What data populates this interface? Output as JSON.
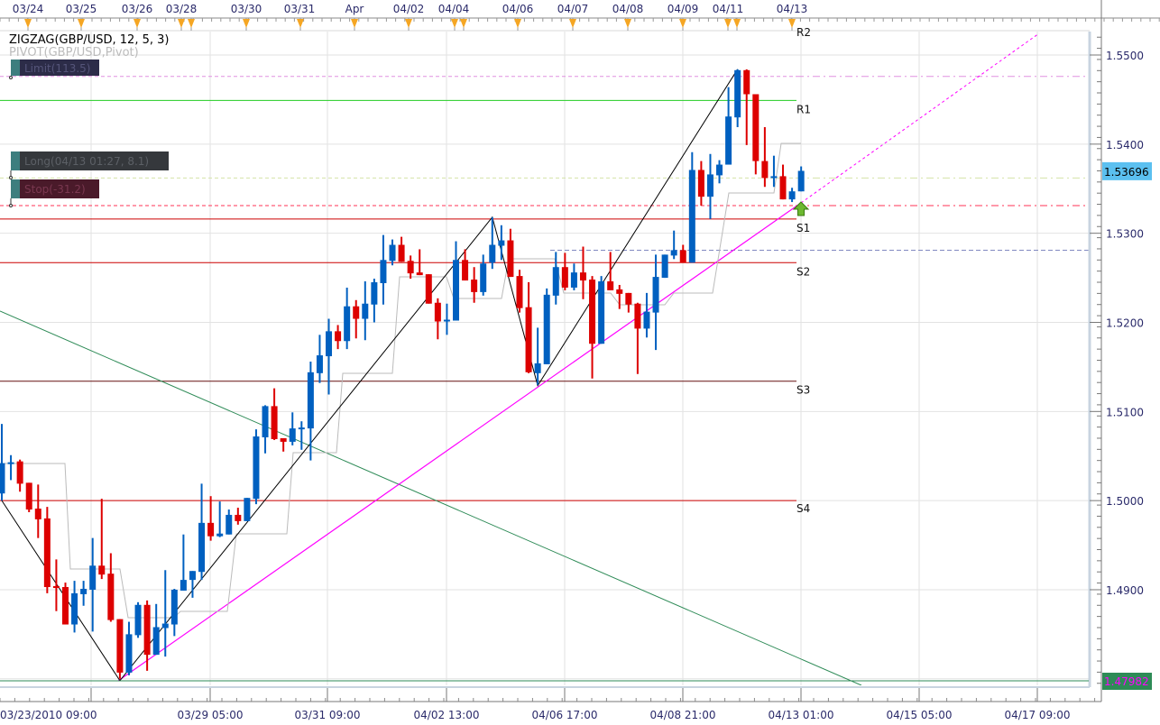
{
  "legend": {
    "indicator1": "ZIGZAG(GBP/USD, 12, 5, 3)",
    "indicator2": "PIVOT(GBP/USD,Pivot)"
  },
  "orders": {
    "limit": "Limit(113.5)",
    "long": "Long(04/13 01:27, 8.1)",
    "stop": "Stop(-31.2)"
  },
  "pivot_labels": {
    "r2": "R2",
    "r1": "R1",
    "s1": "S1",
    "s2": "S2",
    "s3": "S3",
    "s4": "S4"
  },
  "price_axis": {
    "ticks": [
      "1.5500",
      "1.5400",
      "1.5300",
      "1.5200",
      "1.5100",
      "1.5000",
      "1.4900"
    ],
    "current_price": "1.53696",
    "low_marker": "1.47982"
  },
  "top_axis": {
    "labels": [
      "03/24",
      "03/25",
      "03/26",
      "03/28",
      "03/30",
      "03/31",
      "Apr",
      "04/02",
      "04/04",
      "04/06",
      "04/07",
      "04/08",
      "04/09",
      "04/11",
      "04/13"
    ]
  },
  "bottom_axis": {
    "labels": [
      "03/23/2010 09:00",
      "03/29 05:00",
      "03/31 09:00",
      "04/02 13:00",
      "04/06 17:00",
      "04/08 21:00",
      "04/13 01:00",
      "04/15 05:00",
      "04/17 09:00"
    ]
  },
  "colors": {
    "bull": "#0060c0",
    "bear": "#dd0000",
    "current_price_bg": "#5bc0f0",
    "low_marker_bg": "#2e8b57",
    "low_marker_text": "#ff00ff",
    "trendline": "#ff00ff",
    "r1": "#22cc22",
    "support": "#cc0000"
  },
  "chart_data": {
    "type": "candlestick",
    "symbol": "GBP/USD",
    "ylim": [
      1.4795,
      1.5525
    ],
    "levels": {
      "R1": 1.5449,
      "S1": 1.5316,
      "S2": 1.5267,
      "S3": 1.5134,
      "S4": 1.5,
      "limit": 1.5476,
      "long_entry": 1.5362,
      "stop": 1.5331,
      "blue_dashed": 1.5281
    },
    "candles_ohlc": [
      [
        1.5008,
        1.5086,
        1.5,
        1.5042
      ],
      [
        1.5041,
        1.5051,
        1.5023,
        1.5043
      ],
      [
        1.5044,
        1.5046,
        1.501,
        1.5019
      ],
      [
        1.502,
        1.502,
        1.4987,
        1.499
      ],
      [
        1.4991,
        1.5018,
        1.4958,
        1.4979
      ],
      [
        1.498,
        1.4993,
        1.4896,
        1.4903
      ],
      [
        1.4904,
        1.4934,
        1.4876,
        1.4902
      ],
      [
        1.4903,
        1.4908,
        1.4861,
        1.4861
      ],
      [
        1.4861,
        1.491,
        1.4852,
        1.4896
      ],
      [
        1.4895,
        1.491,
        1.4882,
        1.4901
      ],
      [
        1.49,
        1.4958,
        1.4853,
        1.4927
      ],
      [
        1.4927,
        1.5002,
        1.4912,
        1.4917
      ],
      [
        1.4918,
        1.4941,
        1.4864,
        1.4866
      ],
      [
        1.4867,
        1.4867,
        1.48,
        1.4807
      ],
      [
        1.4807,
        1.4864,
        1.4804,
        1.485
      ],
      [
        1.4849,
        1.4886,
        1.4846,
        1.4883
      ],
      [
        1.4883,
        1.4888,
        1.4809,
        1.4827
      ],
      [
        1.4827,
        1.4884,
        1.4827,
        1.4858
      ],
      [
        1.4857,
        1.4922,
        1.4825,
        1.4862
      ],
      [
        1.4861,
        1.4901,
        1.4848,
        1.49
      ],
      [
        1.4899,
        1.4962,
        1.4899,
        1.4911
      ],
      [
        1.4911,
        1.4921,
        1.4891,
        1.4921
      ],
      [
        1.492,
        1.5019,
        1.4911,
        1.4975
      ],
      [
        1.4975,
        1.5005,
        1.4955,
        1.496
      ],
      [
        1.496,
        1.4999,
        1.4959,
        1.4963
      ],
      [
        1.4962,
        1.499,
        1.4962,
        1.4984
      ],
      [
        1.4984,
        1.4992,
        1.4973,
        1.4977
      ],
      [
        1.4977,
        1.5003,
        1.4977,
        1.5003
      ],
      [
        1.5002,
        1.508,
        1.4996,
        1.5072
      ],
      [
        1.5071,
        1.5107,
        1.5053,
        1.5106
      ],
      [
        1.5106,
        1.5126,
        1.5068,
        1.5069
      ],
      [
        1.507,
        1.507,
        1.5055,
        1.5066
      ],
      [
        1.5066,
        1.5099,
        1.5062,
        1.5081
      ],
      [
        1.508,
        1.5089,
        1.5057,
        1.5082
      ],
      [
        1.5081,
        1.5156,
        1.5045,
        1.5144
      ],
      [
        1.5143,
        1.5186,
        1.5132,
        1.5163
      ],
      [
        1.5162,
        1.5204,
        1.5119,
        1.519
      ],
      [
        1.519,
        1.5197,
        1.517,
        1.5179
      ],
      [
        1.5179,
        1.5239,
        1.517,
        1.5218
      ],
      [
        1.5218,
        1.5225,
        1.5182,
        1.5204
      ],
      [
        1.5204,
        1.5246,
        1.518,
        1.5221
      ],
      [
        1.522,
        1.5249,
        1.52,
        1.5245
      ],
      [
        1.5244,
        1.5298,
        1.522,
        1.527
      ],
      [
        1.5269,
        1.5293,
        1.5264,
        1.5287
      ],
      [
        1.5287,
        1.5296,
        1.5268,
        1.5268
      ],
      [
        1.5269,
        1.5275,
        1.5249,
        1.5255
      ],
      [
        1.5256,
        1.5282,
        1.5253,
        1.5253
      ],
      [
        1.5254,
        1.5254,
        1.5221,
        1.5221
      ],
      [
        1.5222,
        1.5227,
        1.5181,
        1.5201
      ],
      [
        1.5201,
        1.5221,
        1.5186,
        1.5203
      ],
      [
        1.5202,
        1.5291,
        1.5202,
        1.527
      ],
      [
        1.527,
        1.5282,
        1.5247,
        1.5247
      ],
      [
        1.5248,
        1.5262,
        1.5222,
        1.5234
      ],
      [
        1.5234,
        1.5276,
        1.523,
        1.5266
      ],
      [
        1.5267,
        1.5318,
        1.526,
        1.5287
      ],
      [
        1.5286,
        1.5309,
        1.527,
        1.5292
      ],
      [
        1.5292,
        1.5305,
        1.5251,
        1.5251
      ],
      [
        1.5252,
        1.5259,
        1.5211,
        1.5216
      ],
      [
        1.5217,
        1.5245,
        1.5143,
        1.5144
      ],
      [
        1.5143,
        1.5194,
        1.513,
        1.5154
      ],
      [
        1.5153,
        1.5238,
        1.5153,
        1.5231
      ],
      [
        1.523,
        1.5279,
        1.522,
        1.5262
      ],
      [
        1.5262,
        1.5278,
        1.5236,
        1.5239
      ],
      [
        1.5239,
        1.5266,
        1.5236,
        1.5256
      ],
      [
        1.5256,
        1.5285,
        1.5226,
        1.5247
      ],
      [
        1.5248,
        1.5252,
        1.5137,
        1.5176
      ],
      [
        1.5176,
        1.5252,
        1.5176,
        1.5246
      ],
      [
        1.5246,
        1.5279,
        1.5236,
        1.5236
      ],
      [
        1.5237,
        1.5242,
        1.5215,
        1.5232
      ],
      [
        1.5233,
        1.5233,
        1.5211,
        1.522
      ],
      [
        1.5221,
        1.5222,
        1.5142,
        1.5193
      ],
      [
        1.5193,
        1.5233,
        1.5183,
        1.5212
      ],
      [
        1.5211,
        1.5276,
        1.5169,
        1.5251
      ],
      [
        1.525,
        1.5276,
        1.525,
        1.5276
      ],
      [
        1.5275,
        1.5303,
        1.5271,
        1.5281
      ],
      [
        1.5281,
        1.5287,
        1.5267,
        1.5267
      ],
      [
        1.5267,
        1.5391,
        1.5267,
        1.5371
      ],
      [
        1.5371,
        1.5381,
        1.5331,
        1.5341
      ],
      [
        1.5341,
        1.5389,
        1.5316,
        1.5366
      ],
      [
        1.5365,
        1.5382,
        1.5356,
        1.5377
      ],
      [
        1.5377,
        1.5464,
        1.5377,
        1.5431
      ],
      [
        1.543,
        1.5484,
        1.5419,
        1.5483
      ],
      [
        1.5483,
        1.5484,
        1.5399,
        1.5456
      ],
      [
        1.5456,
        1.5456,
        1.5366,
        1.5381
      ],
      [
        1.5381,
        1.5419,
        1.5352,
        1.5362
      ],
      [
        1.5362,
        1.5387,
        1.5352,
        1.5364
      ],
      [
        1.5364,
        1.5377,
        1.5338,
        1.5338
      ],
      [
        1.5338,
        1.5351,
        1.5335,
        1.5347
      ],
      [
        1.5347,
        1.5375,
        1.5347,
        1.537
      ]
    ],
    "zigzag_points": [
      [
        0,
        1.5
      ],
      [
        13,
        1.4798
      ],
      [
        54,
        1.5318
      ],
      [
        59,
        1.5129
      ],
      [
        81,
        1.5484
      ]
    ]
  }
}
